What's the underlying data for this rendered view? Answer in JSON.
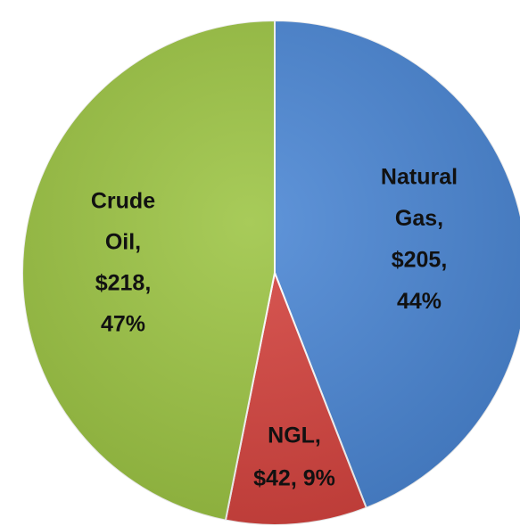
{
  "chart_data": {
    "type": "pie",
    "categories": [
      "Natural Gas",
      "NGL",
      "Crude Oil"
    ],
    "values": [
      205,
      42,
      218
    ],
    "data_labels": [
      [
        "Natural",
        "Gas,",
        "$205,",
        "44%"
      ],
      [
        "NGL,",
        "$42, 9%"
      ],
      [
        "Crude",
        "Oil,",
        "$218,",
        "47%"
      ]
    ],
    "colors": [
      "#4a86d4",
      "#d5433e",
      "#9cc443"
    ]
  }
}
